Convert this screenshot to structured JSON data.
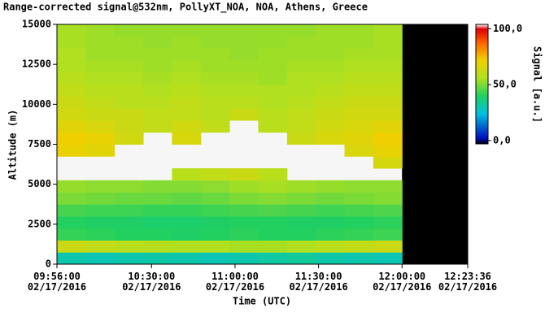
{
  "chart_data": {
    "type": "heatmap",
    "title": "Range-corrected signal@532nm, PollyXT_NOA, NOA, Athens, Greece",
    "x_label": "Time (UTC)",
    "y_label": "Altitude (m)",
    "colorbar_label": "Signal [a.u.]",
    "xlim": [
      596,
      743.6
    ],
    "xticks": [
      {
        "value": 596,
        "label": "09:56:00 02/17/2016"
      },
      {
        "value": 630,
        "label": "10:30:00 02/17/2016"
      },
      {
        "value": 660,
        "label": "11:00:00 02/17/2016"
      },
      {
        "value": 690,
        "label": "11:30:00 02/17/2016"
      },
      {
        "value": 720,
        "label": "12:00:00 02/17/2016"
      },
      {
        "value": 743.6,
        "label": "12:23:36 02/17/2016"
      }
    ],
    "ylim": [
      0,
      15000
    ],
    "yticks": [
      0,
      2500,
      5000,
      7500,
      10000,
      12500,
      15000
    ],
    "clim": [
      -3,
      104
    ],
    "cticks": [
      {
        "value": 0,
        "label": "0,0"
      },
      {
        "value": 50,
        "label": "50,0"
      },
      {
        "value": 100,
        "label": "100,0"
      }
    ],
    "x_edges": [
      596,
      606.33,
      616.67,
      627,
      637.33,
      647.67,
      658,
      668.33,
      678.67,
      689,
      699.33,
      709.67,
      720
    ],
    "y_edges": [
      0,
      750,
      1500,
      2250,
      3000,
      3750,
      4500,
      5250,
      6000,
      6750,
      7500,
      8250,
      9000,
      9750,
      10500,
      11250,
      12000,
      12750,
      13500,
      14250,
      15000
    ],
    "values": [
      [
        28,
        27,
        28,
        29,
        28,
        27,
        28,
        30,
        31,
        29,
        28,
        27
      ],
      [
        62,
        60,
        58,
        57,
        56,
        56,
        55,
        55,
        56,
        58,
        60,
        62
      ],
      [
        42,
        41,
        40,
        40,
        39,
        40,
        41,
        40,
        40,
        41,
        42,
        43
      ],
      [
        40,
        39,
        39,
        38,
        38,
        39,
        40,
        40,
        39,
        39,
        40,
        41
      ],
      [
        44,
        43,
        43,
        42,
        42,
        43,
        44,
        45,
        44,
        43,
        44,
        45
      ],
      [
        50,
        49,
        48,
        48,
        47,
        48,
        50,
        51,
        50,
        49,
        50,
        51
      ],
      [
        53,
        52,
        52,
        51,
        51,
        52,
        54,
        55,
        54,
        53,
        52,
        52
      ],
      [
        null,
        null,
        null,
        null,
        58,
        60,
        62,
        58,
        null,
        null,
        null,
        null
      ],
      [
        null,
        null,
        null,
        null,
        null,
        null,
        null,
        null,
        null,
        null,
        null,
        65
      ],
      [
        70,
        68,
        null,
        null,
        null,
        null,
        null,
        null,
        null,
        null,
        66,
        70
      ],
      [
        72,
        70,
        64,
        null,
        66,
        null,
        null,
        null,
        62,
        66,
        68,
        72
      ],
      [
        68,
        66,
        62,
        60,
        64,
        60,
        null,
        58,
        60,
        64,
        66,
        68
      ],
      [
        64,
        62,
        62,
        60,
        60,
        58,
        62,
        58,
        60,
        62,
        64,
        64
      ],
      [
        62,
        60,
        58,
        58,
        60,
        58,
        58,
        56,
        58,
        60,
        62,
        62
      ],
      [
        60,
        58,
        58,
        56,
        58,
        56,
        56,
        56,
        56,
        58,
        60,
        60
      ],
      [
        58,
        56,
        56,
        55,
        56,
        55,
        55,
        54,
        56,
        56,
        58,
        58
      ],
      [
        56,
        55,
        55,
        54,
        55,
        54,
        54,
        54,
        55,
        55,
        56,
        56
      ],
      [
        56,
        54,
        54,
        54,
        54,
        54,
        53,
        54,
        54,
        54,
        55,
        55
      ],
      [
        55,
        54,
        54,
        53,
        54,
        53,
        53,
        53,
        54,
        54,
        54,
        55
      ],
      [
        55,
        54,
        53,
        53,
        53,
        53,
        53,
        53,
        53,
        54,
        54,
        55
      ]
    ]
  }
}
